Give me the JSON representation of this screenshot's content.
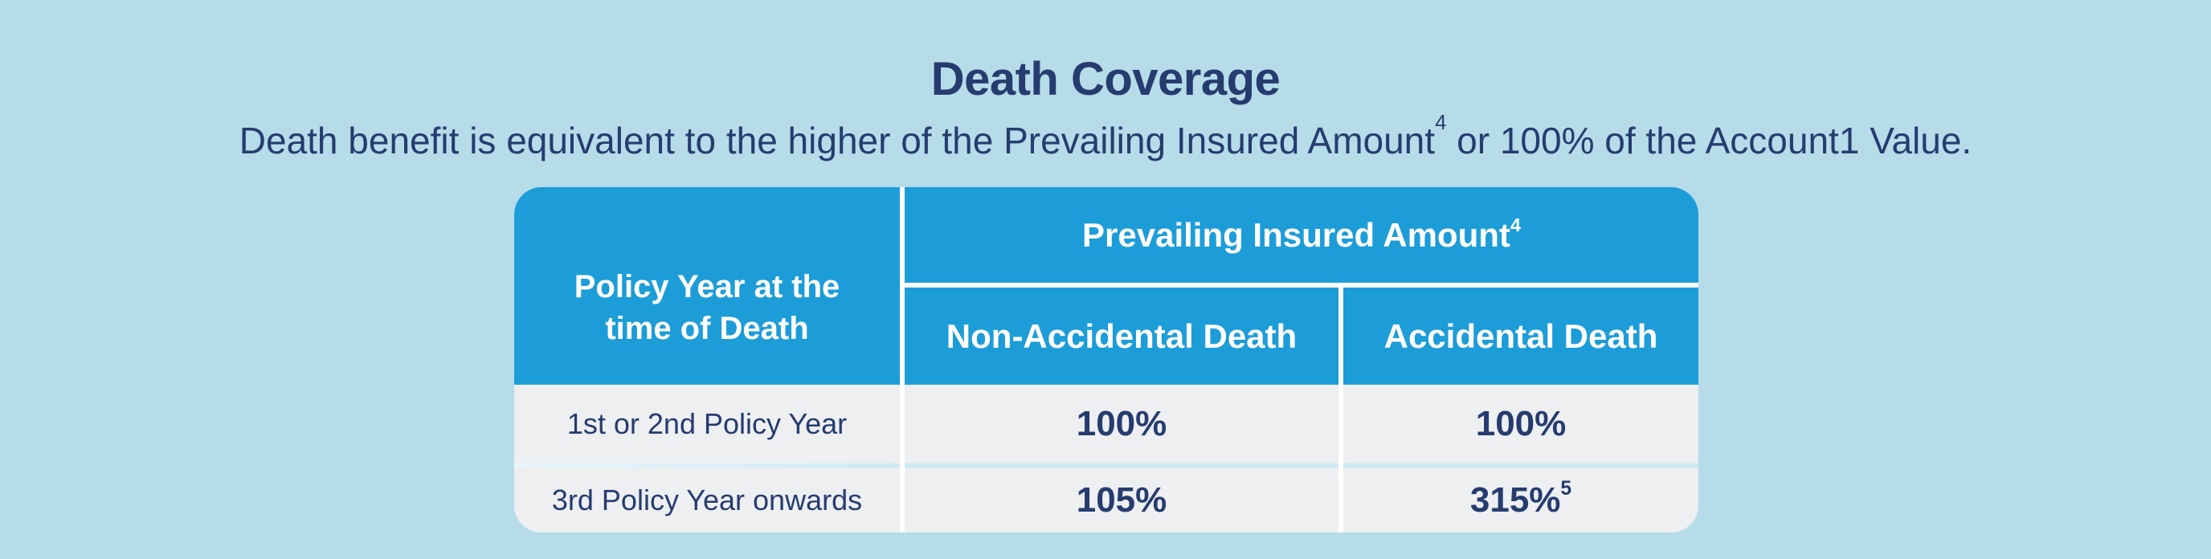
{
  "theme": {
    "bg": "#B6DCE9",
    "blue": "#1D9DD8",
    "navy": "#263C6F",
    "cellbg": "#EDEFF1",
    "cyan-div": "#CFE9F3",
    "white": "#FFFFFF"
  },
  "title": "Death Coverage",
  "subtitle": {
    "text_before_sup": "Death benefit is equivalent to the higher of the Prevailing Insured Amount",
    "sup": "4",
    "text_after_sup": " or 100% of the Account1 Value."
  },
  "table": {
    "corner_header": {
      "line1": "Policy Year at the",
      "line2": "time of Death"
    },
    "group_header": {
      "text": "Prevailing Insured Amount",
      "sup": "4"
    },
    "column_headers": [
      "Non-Accidental Death",
      "Accidental Death"
    ],
    "rows": [
      {
        "label": "1st or 2nd Policy Year",
        "values": [
          "100%",
          "100%"
        ],
        "values_sup": [
          "",
          ""
        ]
      },
      {
        "label": "3rd Policy Year onwards",
        "values": [
          "105%",
          "315%"
        ],
        "values_sup": [
          "",
          "5"
        ]
      }
    ]
  }
}
